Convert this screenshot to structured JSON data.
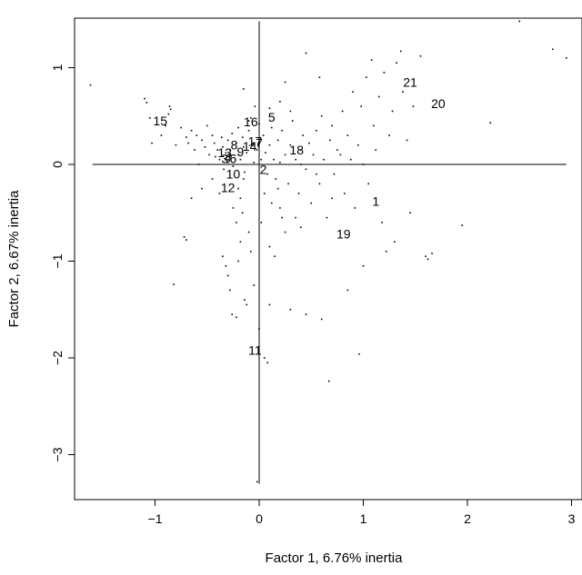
{
  "chart_data": {
    "type": "scatter",
    "xlabel": "Factor 1, 6.76% inertia",
    "ylabel": "Factor 2, 6.67% inertia",
    "xlim": [
      -1.7,
      3.0
    ],
    "ylim": [
      -3.5,
      1.55
    ],
    "xticks": [
      "−1",
      "0",
      "1",
      "2",
      "3"
    ],
    "xtick_values": [
      -1,
      0,
      1,
      2,
      3
    ],
    "yticks": [
      "−3",
      "−2",
      "−1",
      "0",
      "1"
    ],
    "ytick_values": [
      -3,
      -2,
      -1,
      0,
      1
    ],
    "reference_lines": {
      "horizontal": {
        "y": 0,
        "x_from": -1.6,
        "x_to": 2.95
      },
      "vertical": {
        "x": 0,
        "y_from": -3.3,
        "y_to": 1.48
      }
    },
    "labeled_points": [
      {
        "label": "1",
        "x": 1.12,
        "y": -0.38
      },
      {
        "label": "2",
        "x": 0.04,
        "y": -0.05
      },
      {
        "label": "3",
        "x": -0.33,
        "y": 0.06
      },
      {
        "label": "4",
        "x": -0.3,
        "y": 0.07
      },
      {
        "label": "5",
        "x": 0.12,
        "y": 0.49
      },
      {
        "label": "6",
        "x": -0.25,
        "y": 0.06
      },
      {
        "label": "7",
        "x": 0.0,
        "y": 0.22
      },
      {
        "label": "8",
        "x": -0.24,
        "y": 0.2
      },
      {
        "label": "9",
        "x": -0.18,
        "y": 0.13
      },
      {
        "label": "10",
        "x": -0.25,
        "y": -0.1
      },
      {
        "label": "11",
        "x": -0.04,
        "y": -1.92
      },
      {
        "label": "12",
        "x": -0.3,
        "y": -0.24
      },
      {
        "label": "13",
        "x": -0.33,
        "y": 0.12
      },
      {
        "label": "14",
        "x": -0.09,
        "y": 0.19
      },
      {
        "label": "15",
        "x": -0.95,
        "y": 0.45
      },
      {
        "label": "16",
        "x": -0.08,
        "y": 0.44
      },
      {
        "label": "17",
        "x": -0.04,
        "y": 0.24
      },
      {
        "label": "18",
        "x": 0.36,
        "y": 0.15
      },
      {
        "label": "19",
        "x": 0.81,
        "y": -0.72
      },
      {
        "label": "20",
        "x": 1.72,
        "y": 0.63
      },
      {
        "label": "21",
        "x": 1.45,
        "y": 0.85
      }
    ],
    "points": [
      [
        -1.62,
        0.82
      ],
      [
        -1.1,
        0.68
      ],
      [
        -1.08,
        0.64
      ],
      [
        -1.05,
        0.48
      ],
      [
        -1.03,
        0.22
      ],
      [
        -0.85,
        0.57
      ],
      [
        -0.86,
        0.6
      ],
      [
        -0.87,
        0.52
      ],
      [
        -0.9,
        0.4
      ],
      [
        -0.94,
        0.3
      ],
      [
        -0.8,
        0.2
      ],
      [
        -0.82,
        -1.24
      ],
      [
        -0.75,
        0.38
      ],
      [
        -0.7,
        0.28
      ],
      [
        -0.68,
        0.22
      ],
      [
        -0.65,
        0.35
      ],
      [
        -0.62,
        0.15
      ],
      [
        -0.6,
        0.3
      ],
      [
        -0.58,
        0.0
      ],
      [
        -0.55,
        0.25
      ],
      [
        -0.52,
        0.18
      ],
      [
        -0.5,
        0.4
      ],
      [
        -0.48,
        0.1
      ],
      [
        -0.45,
        0.3
      ],
      [
        -0.43,
        0.22
      ],
      [
        -0.4,
        0.15
      ],
      [
        -0.42,
        0.08
      ],
      [
        -0.38,
        0.05
      ],
      [
        -0.36,
        0.28
      ],
      [
        -0.35,
        0.18
      ],
      [
        -0.34,
        -0.05
      ],
      [
        -0.32,
        0.12
      ],
      [
        -0.3,
        0.25
      ],
      [
        -0.3,
        0.02
      ],
      [
        -0.28,
        0.15
      ],
      [
        -0.26,
        0.32
      ],
      [
        -0.25,
        -0.02
      ],
      [
        -0.22,
        0.22
      ],
      [
        -0.2,
        0.1
      ],
      [
        -0.2,
        0.38
      ],
      [
        -0.18,
        0.05
      ],
      [
        -0.16,
        0.28
      ],
      [
        -0.15,
        0.18
      ],
      [
        -0.14,
        -0.08
      ],
      [
        -0.12,
        0.12
      ],
      [
        -0.1,
        0.35
      ],
      [
        -0.08,
        0.48
      ],
      [
        -0.06,
        0.22
      ],
      [
        -0.05,
        0.02
      ],
      [
        -0.04,
        0.6
      ],
      [
        -0.02,
        0.15
      ],
      [
        0.0,
        0.42
      ],
      [
        0.02,
        0.05
      ],
      [
        0.04,
        0.3
      ],
      [
        0.06,
        0.12
      ],
      [
        0.08,
        -0.1
      ],
      [
        0.1,
        0.2
      ],
      [
        0.12,
        0.38
      ],
      [
        0.14,
        0.05
      ],
      [
        0.16,
        -0.15
      ],
      [
        0.18,
        0.25
      ],
      [
        0.2,
        0.02
      ],
      [
        0.22,
        0.35
      ],
      [
        0.25,
        0.1
      ],
      [
        0.28,
        -0.2
      ],
      [
        0.3,
        0.2
      ],
      [
        0.32,
        0.45
      ],
      [
        0.35,
        0.05
      ],
      [
        0.38,
        -0.3
      ],
      [
        0.4,
        0.15
      ],
      [
        0.42,
        0.3
      ],
      [
        0.45,
        -0.05
      ],
      [
        0.48,
        0.22
      ],
      [
        0.5,
        -0.4
      ],
      [
        0.52,
        0.1
      ],
      [
        0.55,
        0.35
      ],
      [
        0.58,
        -0.2
      ],
      [
        0.6,
        0.5
      ],
      [
        0.62,
        0.05
      ],
      [
        0.65,
        -0.55
      ],
      [
        0.68,
        0.25
      ],
      [
        0.7,
        0.4
      ],
      [
        0.72,
        -0.1
      ],
      [
        0.75,
        0.15
      ],
      [
        0.8,
        0.55
      ],
      [
        0.82,
        -0.3
      ],
      [
        0.85,
        0.3
      ],
      [
        0.88,
        0.05
      ],
      [
        0.9,
        0.75
      ],
      [
        0.92,
        -0.45
      ],
      [
        0.95,
        0.2
      ],
      [
        0.98,
        0.6
      ],
      [
        1.0,
        0.0
      ],
      [
        1.03,
        0.9
      ],
      [
        1.05,
        -0.2
      ],
      [
        1.08,
        1.08
      ],
      [
        1.1,
        0.4
      ],
      [
        1.12,
        0.15
      ],
      [
        1.15,
        0.7
      ],
      [
        1.18,
        -0.6
      ],
      [
        1.2,
        0.95
      ],
      [
        1.22,
        -0.9
      ],
      [
        1.25,
        0.3
      ],
      [
        1.28,
        0.55
      ],
      [
        1.3,
        -0.8
      ],
      [
        1.32,
        1.05
      ],
      [
        1.36,
        1.17
      ],
      [
        1.38,
        0.75
      ],
      [
        1.42,
        0.25
      ],
      [
        1.45,
        -0.5
      ],
      [
        1.48,
        0.6
      ],
      [
        1.55,
        1.12
      ],
      [
        1.6,
        -0.95
      ],
      [
        1.62,
        -0.98
      ],
      [
        1.66,
        -0.92
      ],
      [
        1.95,
        -0.63
      ],
      [
        2.22,
        0.43
      ],
      [
        2.5,
        1.48
      ],
      [
        2.82,
        1.19
      ],
      [
        2.95,
        1.1
      ],
      [
        1.0,
        -1.05
      ],
      [
        0.85,
        -1.3
      ],
      [
        0.6,
        -1.6
      ],
      [
        0.45,
        -1.55
      ],
      [
        0.3,
        -1.5
      ],
      [
        0.1,
        -1.45
      ],
      [
        0.0,
        -1.7
      ],
      [
        0.05,
        -2.0
      ],
      [
        0.08,
        -2.05
      ],
      [
        0.96,
        -1.96
      ],
      [
        0.67,
        -2.24
      ],
      [
        -0.02,
        -3.28
      ],
      [
        -0.7,
        -0.78
      ],
      [
        -0.72,
        -0.75
      ],
      [
        -0.35,
        -0.95
      ],
      [
        -0.32,
        -1.05
      ],
      [
        -0.3,
        -1.15
      ],
      [
        -0.28,
        -1.3
      ],
      [
        -0.26,
        -1.55
      ],
      [
        -0.22,
        -1.58
      ],
      [
        -0.2,
        -1.0
      ],
      [
        -0.18,
        -0.8
      ],
      [
        -0.16,
        -0.5
      ],
      [
        -0.14,
        -1.4
      ],
      [
        -0.12,
        -1.45
      ],
      [
        -0.1,
        -0.7
      ],
      [
        -0.08,
        -0.9
      ],
      [
        -0.05,
        -1.25
      ],
      [
        0.02,
        -0.6
      ],
      [
        0.05,
        -0.3
      ],
      [
        0.1,
        -0.85
      ],
      [
        0.15,
        -0.95
      ],
      [
        0.2,
        -0.45
      ],
      [
        0.25,
        -0.7
      ],
      [
        0.35,
        -0.55
      ],
      [
        0.4,
        -0.65
      ],
      [
        -0.65,
        -0.35
      ],
      [
        -0.55,
        -0.25
      ],
      [
        -0.45,
        -0.15
      ],
      [
        -0.38,
        -0.3
      ],
      [
        -0.25,
        -0.45
      ],
      [
        -0.22,
        -0.6
      ],
      [
        -0.2,
        -0.25
      ],
      [
        -0.18,
        -0.35
      ],
      [
        -0.15,
        -0.15
      ],
      [
        0.12,
        -0.4
      ],
      [
        0.18,
        -0.25
      ],
      [
        0.22,
        -0.55
      ],
      [
        0.3,
        0.55
      ],
      [
        0.2,
        0.65
      ],
      [
        0.1,
        0.58
      ],
      [
        -0.1,
        0.45
      ],
      [
        0.45,
        1.15
      ],
      [
        0.58,
        0.9
      ],
      [
        0.25,
        0.85
      ],
      [
        -0.15,
        0.78
      ],
      [
        0.4,
        0.0
      ],
      [
        0.55,
        -0.1
      ],
      [
        0.7,
        -0.35
      ],
      [
        0.78,
        0.1
      ]
    ]
  }
}
